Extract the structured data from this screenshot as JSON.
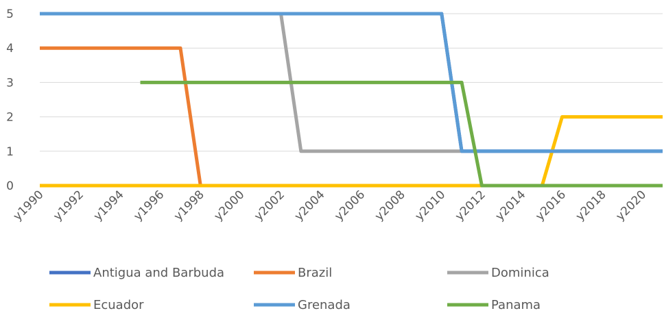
{
  "chart_data": {
    "type": "line",
    "title": "",
    "xlabel": "",
    "ylabel": "",
    "x": [
      "y1990",
      "y1991",
      "y1992",
      "y1993",
      "y1994",
      "y1995",
      "y1996",
      "y1997",
      "y1998",
      "y1999",
      "y2000",
      "y2001",
      "y2002",
      "y2003",
      "y2004",
      "y2005",
      "y2006",
      "y2007",
      "y2008",
      "y2009",
      "y2010",
      "y2011",
      "y2012",
      "y2013",
      "y2014",
      "y2015",
      "y2016",
      "y2017",
      "y2018",
      "y2019",
      "y2020",
      "y2021"
    ],
    "x_tick_labels": [
      "y1990",
      "y1992",
      "y1994",
      "y1996",
      "y1998",
      "y2000",
      "y2002",
      "y2004",
      "y2006",
      "y2008",
      "y2010",
      "y2012",
      "y2014",
      "y2016",
      "y2018",
      "y2020"
    ],
    "y_ticks": [
      "0",
      "1",
      "2",
      "3",
      "4",
      "5"
    ],
    "ylim": [
      0,
      5
    ],
    "grid": true,
    "legend_position": "bottom",
    "series": [
      {
        "name": "Antigua and Barbuda",
        "color": "#4472c4",
        "values": [
          5,
          5,
          5,
          5,
          5,
          5,
          5,
          5,
          5,
          5,
          5,
          5,
          5,
          5,
          5,
          5,
          5,
          5,
          5,
          5,
          5,
          1,
          1,
          1,
          1,
          1,
          1,
          1,
          1,
          1,
          1,
          1
        ]
      },
      {
        "name": "Brazil",
        "color": "#ed7d31",
        "values": [
          4,
          4,
          4,
          4,
          4,
          4,
          4,
          4,
          0,
          0,
          0,
          0,
          0,
          0,
          0,
          0,
          0,
          0,
          0,
          0,
          0,
          0,
          0,
          0,
          0,
          0,
          0,
          0,
          0,
          0,
          0,
          0
        ]
      },
      {
        "name": "Dominica",
        "color": "#a5a5a5",
        "values": [
          null,
          null,
          null,
          null,
          null,
          null,
          null,
          null,
          null,
          null,
          null,
          null,
          5,
          1,
          1,
          1,
          1,
          1,
          1,
          1,
          1,
          1,
          null,
          null,
          null,
          null,
          null,
          null,
          null,
          null,
          null,
          null
        ]
      },
      {
        "name": "Ecuador",
        "color": "#ffc000",
        "values": [
          0,
          0,
          0,
          0,
          0,
          0,
          0,
          0,
          0,
          0,
          0,
          0,
          0,
          0,
          0,
          0,
          0,
          0,
          0,
          0,
          0,
          0,
          0,
          0,
          0,
          0,
          2,
          2,
          2,
          2,
          2,
          2
        ]
      },
      {
        "name": "Grenada",
        "color": "#5b9bd5",
        "values": [
          5,
          5,
          5,
          5,
          5,
          5,
          5,
          5,
          5,
          5,
          5,
          5,
          5,
          5,
          5,
          5,
          5,
          5,
          5,
          5,
          5,
          1,
          1,
          1,
          1,
          1,
          1,
          1,
          1,
          1,
          1,
          1
        ]
      },
      {
        "name": "Panama",
        "color": "#70ad47",
        "values": [
          null,
          null,
          null,
          null,
          null,
          3,
          3,
          3,
          3,
          3,
          3,
          3,
          3,
          3,
          3,
          3,
          3,
          3,
          3,
          3,
          3,
          3,
          0,
          0,
          0,
          0,
          0,
          0,
          0,
          0,
          0,
          0
        ]
      }
    ]
  }
}
